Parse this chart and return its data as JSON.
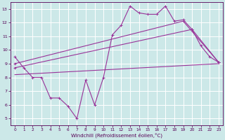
{
  "xlabel": "Windchill (Refroidissement éolien,°C)",
  "bg_color": "#cce8e8",
  "grid_color": "#ffffff",
  "line_color": "#993399",
  "x_ticks": [
    0,
    1,
    2,
    3,
    4,
    5,
    6,
    7,
    8,
    9,
    10,
    11,
    12,
    13,
    14,
    15,
    16,
    17,
    18,
    19,
    20,
    21,
    22,
    23
  ],
  "y_ticks": [
    5,
    6,
    7,
    8,
    9,
    10,
    11,
    12,
    13
  ],
  "xlim": [
    -0.5,
    23.5
  ],
  "ylim": [
    4.5,
    13.5
  ],
  "series1_x": [
    0,
    1,
    2,
    3,
    4,
    5,
    6,
    7,
    8,
    9,
    10,
    11,
    12,
    13,
    14,
    15,
    16,
    17,
    18,
    19,
    20,
    21,
    22,
    23
  ],
  "series1_y": [
    9.5,
    8.7,
    8.0,
    8.0,
    6.5,
    6.5,
    5.9,
    5.0,
    7.8,
    6.0,
    8.0,
    11.1,
    11.8,
    13.2,
    12.7,
    12.6,
    12.6,
    13.2,
    12.1,
    12.2,
    11.5,
    10.3,
    9.5,
    9.1
  ],
  "series2_x": [
    0,
    19,
    23
  ],
  "series2_y": [
    9.0,
    12.1,
    9.1
  ],
  "series3_x": [
    0,
    20,
    23
  ],
  "series3_y": [
    8.7,
    11.5,
    9.1
  ],
  "series4_x": [
    0,
    23
  ],
  "series4_y": [
    8.2,
    9.0
  ]
}
